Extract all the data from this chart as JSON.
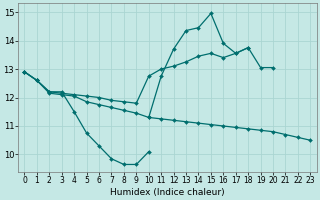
{
  "x": [
    0,
    1,
    2,
    3,
    4,
    5,
    6,
    7,
    8,
    9,
    10,
    11,
    12,
    13,
    14,
    15,
    16,
    17,
    18,
    19,
    20,
    21,
    22,
    23
  ],
  "line_ucurve": [
    12.9,
    12.6,
    12.2,
    12.2,
    11.5,
    10.75,
    10.3,
    9.85,
    9.65,
    9.65,
    10.1,
    null,
    null,
    null,
    null,
    null,
    null,
    null,
    null,
    null,
    null,
    null,
    null,
    null
  ],
  "line_upper": [
    12.9,
    12.6,
    12.2,
    12.15,
    12.1,
    12.05,
    12.0,
    11.9,
    11.85,
    11.8,
    12.75,
    13.0,
    13.1,
    13.25,
    13.45,
    13.55,
    13.4,
    13.55,
    13.75,
    13.05,
    13.05,
    null,
    null,
    null
  ],
  "line_lower": [
    12.9,
    12.6,
    12.15,
    12.1,
    12.05,
    11.85,
    11.75,
    11.65,
    11.55,
    11.45,
    11.3,
    11.25,
    11.2,
    11.15,
    11.1,
    11.05,
    11.0,
    10.95,
    10.9,
    10.85,
    10.8,
    10.7,
    10.6,
    10.5
  ],
  "line_peak": [
    null,
    null,
    null,
    null,
    null,
    null,
    null,
    null,
    null,
    null,
    11.3,
    12.75,
    13.7,
    14.35,
    14.45,
    14.95,
    13.9,
    13.55,
    13.75,
    null,
    null,
    null,
    null,
    null
  ],
  "xlim_min": -0.5,
  "xlim_max": 23.5,
  "ylim_min": 9.4,
  "ylim_max": 15.3,
  "yticks": [
    10,
    11,
    12,
    13,
    14,
    15
  ],
  "xticks": [
    0,
    1,
    2,
    3,
    4,
    5,
    6,
    7,
    8,
    9,
    10,
    11,
    12,
    13,
    14,
    15,
    16,
    17,
    18,
    19,
    20,
    21,
    22,
    23
  ],
  "xlabel": "Humidex (Indice chaleur)",
  "bg_color": "#c5e8e5",
  "grid_color": "#aad5d2",
  "line_color": "#006e6e",
  "markersize": 2.0,
  "linewidth": 0.9,
  "tick_fontsize": 5.5,
  "xlabel_fontsize": 6.5
}
